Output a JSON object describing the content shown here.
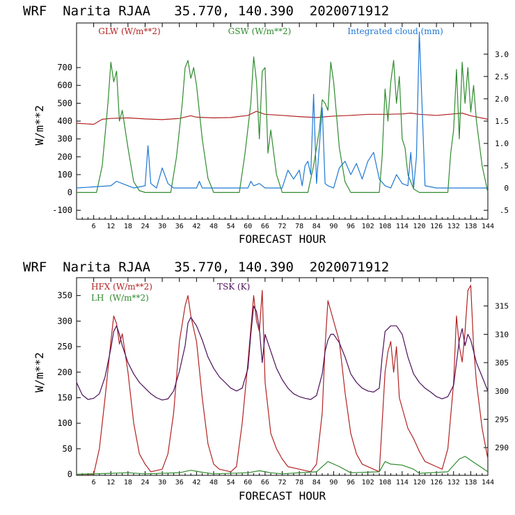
{
  "chart_data": [
    {
      "type": "line",
      "title": "WRF  Narita RJAA   35.770, 140.390  2020071912",
      "xlabel": "FORECAST HOUR",
      "ylabel": "W/m**2",
      "xlim": [
        0,
        144
      ],
      "ylim": [
        -150,
        950
      ],
      "y2lim": [
        -0.7,
        3.7
      ],
      "x_ticks": [
        6,
        12,
        18,
        24,
        30,
        36,
        42,
        48,
        54,
        60,
        66,
        72,
        78,
        84,
        90,
        96,
        102,
        108,
        114,
        120,
        126,
        132,
        138,
        144
      ],
      "y_ticks": [
        -100,
        0,
        100,
        200,
        300,
        400,
        500,
        600,
        700
      ],
      "y_tick_labels": [
        "-100",
        "0",
        "100",
        "200",
        "300",
        "400",
        "500",
        "600",
        "700"
      ],
      "y2_ticks": [
        -0.5,
        0,
        0.5,
        1.0,
        1.5,
        2.0,
        2.5,
        3.0
      ],
      "y2_tick_labels": [
        ".5",
        "0",
        ".5",
        "1.0",
        "1.5",
        "2.0",
        "2.5",
        "3.0"
      ],
      "legend": [
        "GLW (W/m**2)",
        "GSW (W/m**2)",
        "Integrated cloud (mm)"
      ],
      "series": [
        {
          "name": "GLW (W/m**2)",
          "axis": "left",
          "color": "#b22222",
          "x": [
            0,
            6,
            9,
            12,
            18,
            24,
            30,
            36,
            40,
            42,
            48,
            54,
            60,
            63,
            66,
            72,
            78,
            84,
            90,
            96,
            102,
            108,
            114,
            117,
            120,
            126,
            132,
            135,
            138,
            144
          ],
          "values": [
            388,
            382,
            410,
            415,
            418,
            412,
            408,
            415,
            430,
            422,
            418,
            420,
            432,
            455,
            438,
            432,
            425,
            420,
            428,
            432,
            438,
            438,
            440,
            445,
            438,
            432,
            440,
            445,
            430,
            410
          ]
        },
        {
          "name": "GSW (W/m**2)",
          "axis": "left",
          "color": "#2e8b2e",
          "x": [
            0,
            7,
            9,
            11,
            12,
            13,
            14,
            15,
            16,
            18,
            20,
            22,
            24,
            33,
            35,
            37,
            38,
            39,
            40,
            41,
            42,
            44,
            46,
            48,
            57,
            59,
            61,
            62,
            63,
            64,
            65,
            66,
            67,
            68,
            70,
            72,
            81,
            83,
            85,
            86,
            87,
            88,
            89,
            90,
            92,
            94,
            96,
            106,
            107,
            108,
            109,
            110,
            111,
            112,
            113,
            114,
            115,
            116,
            118,
            120,
            130,
            131,
            132,
            133,
            134,
            135,
            136,
            137,
            138,
            139,
            140,
            142,
            144
          ],
          "values": [
            0,
            0,
            150,
            500,
            730,
            620,
            680,
            400,
            460,
            250,
            60,
            10,
            0,
            0,
            200,
            500,
            700,
            740,
            640,
            700,
            600,
            300,
            80,
            0,
            0,
            220,
            500,
            760,
            620,
            300,
            680,
            700,
            220,
            350,
            100,
            0,
            0,
            150,
            350,
            520,
            500,
            460,
            730,
            620,
            250,
            60,
            0,
            0,
            200,
            580,
            400,
            620,
            740,
            500,
            650,
            300,
            250,
            100,
            20,
            0,
            0,
            220,
            350,
            690,
            300,
            730,
            500,
            700,
            450,
            600,
            400,
            150,
            0
          ]
        },
        {
          "name": "Integrated cloud (mm)",
          "axis": "right",
          "color": "#1e78d2",
          "x": [
            0,
            12,
            14,
            16,
            18,
            20,
            24,
            25,
            26,
            28,
            30,
            32,
            34,
            42,
            43,
            44,
            48,
            54,
            60,
            61,
            62,
            64,
            66,
            72,
            74,
            76,
            78,
            79,
            80,
            81,
            82,
            83,
            84,
            85,
            86,
            87,
            88,
            90,
            92,
            94,
            96,
            98,
            100,
            102,
            104,
            106,
            108,
            110,
            112,
            114,
            116,
            117,
            118,
            119,
            120,
            122,
            126,
            130,
            134,
            138,
            144
          ],
          "values": [
            0,
            0.05,
            0.15,
            0.1,
            0.05,
            0,
            0.05,
            0.95,
            0.1,
            0,
            0.45,
            0.1,
            0,
            0,
            0.15,
            0,
            0,
            0,
            0,
            0.15,
            0.05,
            0.1,
            0,
            0,
            0.4,
            0.2,
            0.4,
            0.05,
            0.5,
            0.6,
            0.3,
            2.1,
            0.1,
            0.95,
            1.8,
            0.1,
            0.05,
            0,
            0.45,
            0.6,
            0.3,
            0.55,
            0.2,
            0.6,
            0.8,
            0.2,
            0.05,
            0,
            0.3,
            0.1,
            0.05,
            0.8,
            0,
            0.7,
            3.5,
            0.05,
            0,
            0,
            0,
            0,
            0
          ]
        }
      ]
    },
    {
      "type": "line",
      "title": "WRF  Narita RJAA   35.770, 140.390  2020071912",
      "xlabel": "FORECAST HOUR",
      "ylabel": "W/m**2",
      "xlim": [
        0,
        144
      ],
      "ylim": [
        -2,
        385
      ],
      "y2lim": [
        285.1,
        320
      ],
      "x_ticks": [
        6,
        12,
        18,
        24,
        30,
        36,
        42,
        48,
        54,
        60,
        66,
        72,
        78,
        84,
        90,
        96,
        102,
        108,
        114,
        120,
        126,
        132,
        138,
        144
      ],
      "y_ticks": [
        0,
        50,
        100,
        150,
        200,
        250,
        300,
        350
      ],
      "y_tick_labels": [
        "0",
        "50",
        "100",
        "150",
        "200",
        "250",
        "300",
        "350"
      ],
      "y2_ticks": [
        290,
        295,
        300,
        305,
        310,
        315
      ],
      "y2_tick_labels": [
        "290",
        "295",
        "300",
        "305",
        "310",
        "315"
      ],
      "legend": [
        "HFX (W/m**2)",
        "LH  (W/m**2)",
        "TSK (K)"
      ],
      "series": [
        {
          "name": "HFX (W/m**2)",
          "axis": "left",
          "color": "#b22222",
          "x": [
            0,
            6,
            8,
            10,
            12,
            13,
            14,
            15,
            16,
            18,
            20,
            22,
            24,
            26,
            30,
            32,
            34,
            36,
            38,
            39,
            40,
            42,
            44,
            46,
            48,
            50,
            54,
            56,
            58,
            60,
            62,
            63,
            64,
            65,
            66,
            68,
            70,
            72,
            74,
            78,
            82,
            84,
            86,
            87,
            88,
            90,
            92,
            94,
            96,
            98,
            100,
            104,
            106,
            107,
            108,
            109,
            110,
            111,
            112,
            113,
            114,
            116,
            118,
            120,
            122,
            126,
            128,
            130,
            132,
            133,
            134,
            135,
            136,
            137,
            138,
            139,
            140,
            142,
            144
          ],
          "values": [
            0,
            0,
            50,
            150,
            260,
            310,
            295,
            255,
            275,
            200,
            100,
            40,
            20,
            5,
            10,
            40,
            120,
            260,
            330,
            350,
            310,
            260,
            150,
            60,
            20,
            10,
            5,
            15,
            100,
            220,
            350,
            300,
            280,
            360,
            180,
            80,
            50,
            30,
            15,
            10,
            5,
            20,
            120,
            250,
            340,
            300,
            260,
            160,
            80,
            40,
            20,
            10,
            5,
            100,
            200,
            240,
            260,
            200,
            250,
            150,
            130,
            90,
            70,
            45,
            25,
            15,
            10,
            50,
            180,
            310,
            250,
            220,
            280,
            360,
            370,
            250,
            180,
            90,
            30
          ]
        },
        {
          "name": "LH  (W/m**2)",
          "axis": "left",
          "color": "#2e8b2e",
          "x": [
            0,
            12,
            18,
            24,
            36,
            40,
            44,
            48,
            60,
            64,
            68,
            72,
            84,
            88,
            92,
            96,
            106,
            108,
            110,
            114,
            118,
            120,
            130,
            134,
            136,
            140,
            144
          ],
          "values": [
            0,
            2,
            3,
            1,
            3,
            8,
            4,
            1,
            3,
            7,
            3,
            1,
            5,
            25,
            15,
            3,
            5,
            25,
            20,
            18,
            10,
            2,
            5,
            30,
            35,
            20,
            5
          ]
        },
        {
          "name": "TSK (K)",
          "axis": "right",
          "color": "#4b0f5a",
          "x": [
            0,
            2,
            4,
            6,
            8,
            10,
            12,
            13,
            14,
            15,
            16,
            18,
            20,
            22,
            24,
            26,
            28,
            30,
            32,
            34,
            36,
            38,
            39,
            40,
            42,
            44,
            46,
            48,
            50,
            52,
            54,
            56,
            58,
            60,
            61,
            62,
            63,
            64,
            65,
            66,
            68,
            70,
            72,
            74,
            76,
            78,
            80,
            82,
            84,
            86,
            87,
            88,
            89,
            90,
            92,
            94,
            96,
            98,
            100,
            102,
            104,
            106,
            107,
            108,
            110,
            112,
            114,
            116,
            118,
            120,
            122,
            124,
            126,
            128,
            130,
            132,
            133,
            134,
            135,
            136,
            137,
            138,
            140,
            142,
            144
          ],
          "values": [
            301.5,
            299.3,
            298.5,
            298.7,
            299.5,
            302.5,
            307.5,
            310.5,
            311.5,
            310,
            308,
            305,
            303,
            301.5,
            300.5,
            299.5,
            298.8,
            298.4,
            298.6,
            300,
            303.5,
            308,
            312,
            313,
            311.5,
            309,
            306,
            304,
            302.5,
            301.5,
            300.5,
            300,
            300.5,
            304,
            310,
            315,
            314,
            311,
            305,
            310,
            307,
            304,
            302,
            300.5,
            299.5,
            299,
            298.7,
            298.5,
            299.2,
            303,
            307,
            309,
            310,
            310,
            308.5,
            306,
            303,
            301.5,
            300.5,
            300,
            299.8,
            300.5,
            306,
            310.5,
            311.5,
            311.5,
            310,
            306,
            303,
            301.5,
            300.5,
            299.8,
            299,
            298.6,
            299,
            301,
            305,
            309,
            311,
            308,
            310,
            309,
            305,
            302.5,
            300
          ]
        }
      ]
    }
  ]
}
